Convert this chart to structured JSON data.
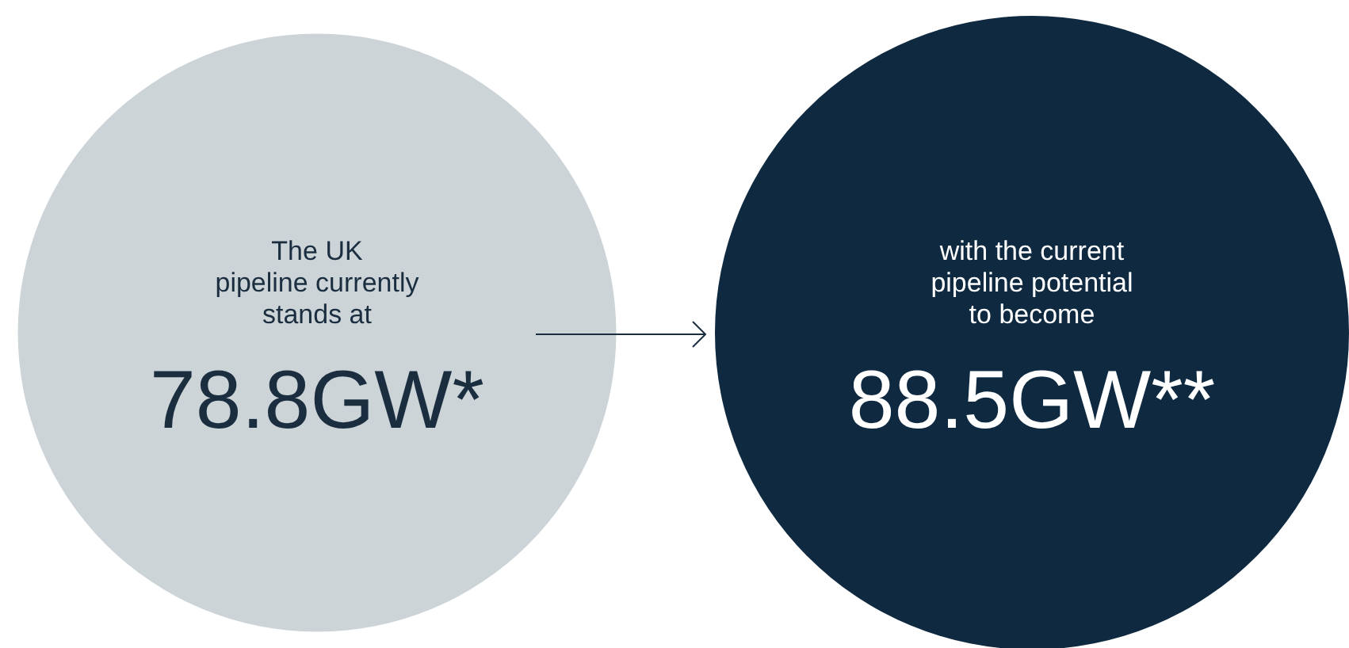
{
  "chart_data": {
    "type": "other",
    "categories": [
      "The UK\npipeline currently\nstands at",
      "with the current\npipeline potential\nto become"
    ],
    "values": [
      78.8,
      88.5
    ],
    "value_labels": [
      "78.8GW*",
      "88.5GW**"
    ],
    "colors": [
      "#ccd4d8",
      "#0f2a40"
    ]
  }
}
